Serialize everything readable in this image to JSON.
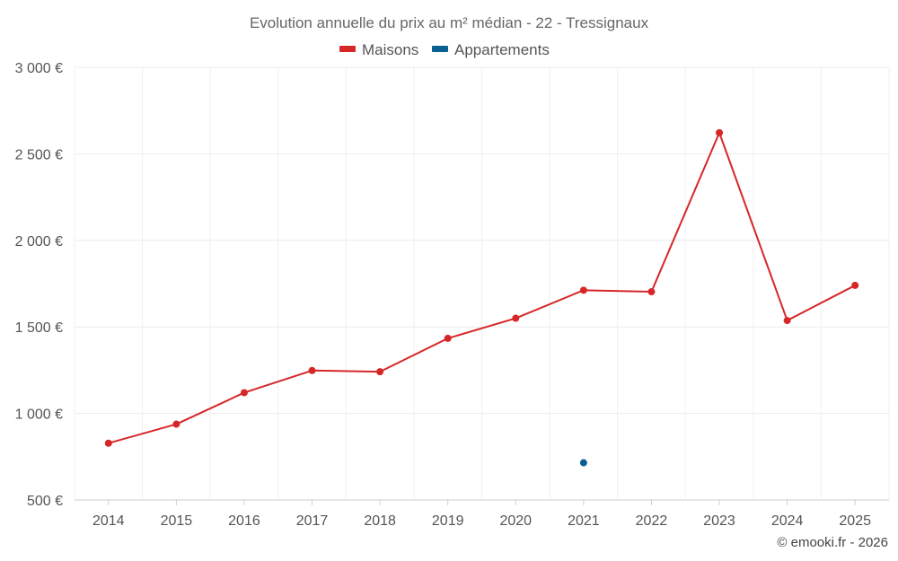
{
  "chart_data": {
    "type": "line",
    "title": "Evolution annuelle du prix au m² médian - 22 - Tressignaux",
    "x": [
      "2014",
      "2015",
      "2016",
      "2017",
      "2018",
      "2019",
      "2020",
      "2021",
      "2022",
      "2023",
      "2024",
      "2025"
    ],
    "ylim": [
      500,
      3000
    ],
    "yticks": [
      500,
      1000,
      1500,
      2000,
      2500,
      3000
    ],
    "ytick_labels": [
      "500 €",
      "1 000 €",
      "1 500 €",
      "2 000 €",
      "2 500 €",
      "3 000 €"
    ],
    "grid": true,
    "legend_position": "top-center",
    "series": [
      {
        "name": "Maisons",
        "color": "#d62728",
        "values": [
          828,
          938,
          1120,
          1248,
          1241,
          1434,
          1550,
          1712,
          1703,
          2622,
          1537,
          1740
        ]
      },
      {
        "name": "Appartements",
        "color": "#0a5f93",
        "values": [
          null,
          null,
          null,
          null,
          null,
          null,
          null,
          715,
          null,
          null,
          null,
          null
        ]
      }
    ]
  },
  "credit": "© emooki.fr - 2026"
}
